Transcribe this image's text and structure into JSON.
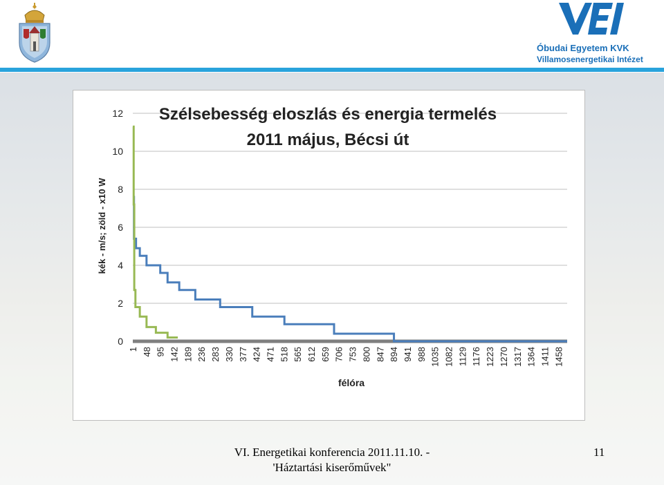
{
  "header": {
    "institution_line1": "Óbudai Egyetem KVK",
    "institution_line2": "Villamosenergetikai Intézet",
    "logo_text": "VEI",
    "accent_color": "#29a3dc"
  },
  "footer": {
    "line1": "VI. Energetikai konferencia 2011.11.10. -",
    "line2": "'Háztartási kiserőművek\"",
    "page_number": "11"
  },
  "chart_data": {
    "type": "line",
    "title": "Szélsebesség eloszlás és energia termelés",
    "subtitle": "2011 május, Bécsi út",
    "xlabel": "félóra",
    "ylabel": "kék - m/s;  zöld - x10 W",
    "ylim": [
      0,
      12
    ],
    "yticks": [
      0,
      2,
      4,
      6,
      8,
      10,
      12
    ],
    "grid": true,
    "xrange": [
      1,
      1488
    ],
    "xticks": [
      "1",
      "48",
      "95",
      "142",
      "189",
      "236",
      "283",
      "330",
      "377",
      "424",
      "471",
      "518",
      "565",
      "612",
      "659",
      "706",
      "753",
      "800",
      "847",
      "894",
      "941",
      "988",
      "1035",
      "1082",
      "1129",
      "1176",
      "1223",
      "1270",
      "1317",
      "1364",
      "1411",
      "1458"
    ],
    "series": [
      {
        "color": "#4a7ebb",
        "x": [
          1,
          5,
          12,
          25,
          48,
          95,
          120,
          160,
          215,
          300,
          410,
          520,
          690,
          890,
          895,
          1488
        ],
        "y": [
          7.6,
          5.4,
          4.9,
          4.5,
          4.0,
          3.6,
          3.1,
          2.7,
          2.2,
          1.8,
          1.3,
          0.9,
          0.4,
          0.4,
          0.0,
          0.0
        ]
      },
      {
        "color": "#98b954",
        "x": [
          1,
          4,
          6,
          10,
          25,
          48,
          80,
          120,
          155
        ],
        "y": [
          11.3,
          7.2,
          2.7,
          1.8,
          1.3,
          0.75,
          0.45,
          0.2,
          0.2
        ]
      }
    ],
    "baseline_series": {
      "color": "#7f7f7f",
      "x": [
        1,
        1488
      ],
      "y": [
        0,
        0
      ]
    }
  }
}
